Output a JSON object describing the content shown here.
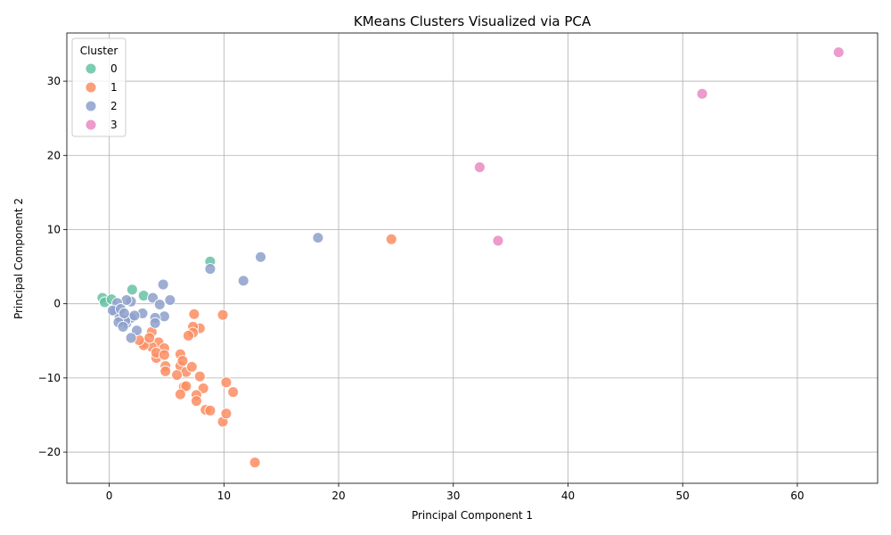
{
  "chart_data": {
    "type": "scatter",
    "title": "KMeans Clusters Visualized via PCA",
    "xlabel": "Principal Component 1",
    "ylabel": "Principal Component 2",
    "xlim": [
      -3.7,
      67
    ],
    "ylim": [
      -24.2,
      36.5
    ],
    "xticks": [
      0,
      10,
      20,
      30,
      40,
      50,
      60
    ],
    "yticks": [
      -20,
      -10,
      0,
      10,
      20,
      30
    ],
    "grid": true,
    "legend": {
      "title": "Cluster",
      "placement": "top-left"
    },
    "series": [
      {
        "name": "0",
        "color": "#66c2a5",
        "points": [
          [
            -0.6,
            0.8
          ],
          [
            -0.4,
            0.2
          ],
          [
            2.0,
            1.9
          ],
          [
            3.0,
            1.1
          ],
          [
            8.8,
            5.7
          ],
          [
            0.2,
            0.6
          ]
        ]
      },
      {
        "name": "1",
        "color": "#fc8d62",
        "points": [
          [
            24.6,
            8.7
          ],
          [
            9.9,
            -1.5
          ],
          [
            7.4,
            -1.4
          ],
          [
            7.9,
            -3.3
          ],
          [
            7.3,
            -3.1
          ],
          [
            7.3,
            -3.9
          ],
          [
            6.9,
            -4.3
          ],
          [
            4.3,
            -5.2
          ],
          [
            4.8,
            -6.0
          ],
          [
            3.1,
            -5.3
          ],
          [
            3.7,
            -5.8
          ],
          [
            3.0,
            -5.6
          ],
          [
            3.7,
            -3.8
          ],
          [
            3.5,
            -4.6
          ],
          [
            2.6,
            -4.9
          ],
          [
            4.1,
            -7.3
          ],
          [
            4.1,
            -6.6
          ],
          [
            4.8,
            -6.9
          ],
          [
            4.9,
            -8.4
          ],
          [
            4.9,
            -9.1
          ],
          [
            6.2,
            -6.8
          ],
          [
            6.2,
            -8.4
          ],
          [
            6.4,
            -7.7
          ],
          [
            6.7,
            -9.2
          ],
          [
            7.2,
            -8.5
          ],
          [
            5.9,
            -9.6
          ],
          [
            7.9,
            -9.8
          ],
          [
            6.5,
            -11.2
          ],
          [
            6.7,
            -11.1
          ],
          [
            8.2,
            -11.4
          ],
          [
            6.2,
            -12.2
          ],
          [
            7.6,
            -12.3
          ],
          [
            7.6,
            -13.1
          ],
          [
            8.4,
            -14.3
          ],
          [
            8.8,
            -14.4
          ],
          [
            9.9,
            -15.9
          ],
          [
            10.2,
            -14.8
          ],
          [
            10.2,
            -10.6
          ],
          [
            10.8,
            -11.9
          ],
          [
            12.7,
            -21.4
          ]
        ]
      },
      {
        "name": "2",
        "color": "#8da0cb",
        "points": [
          [
            18.2,
            8.9
          ],
          [
            13.2,
            6.3
          ],
          [
            11.7,
            3.1
          ],
          [
            8.8,
            4.7
          ],
          [
            4.7,
            2.6
          ],
          [
            5.3,
            0.5
          ],
          [
            3.8,
            0.8
          ],
          [
            4.4,
            -0.1
          ],
          [
            4.8,
            -1.7
          ],
          [
            4.0,
            -1.9
          ],
          [
            4.0,
            -2.6
          ],
          [
            2.9,
            -1.3
          ],
          [
            1.9,
            0.3
          ],
          [
            1.5,
            0.5
          ],
          [
            0.7,
            0.1
          ],
          [
            0.5,
            -1.0
          ],
          [
            0.9,
            -1.8
          ],
          [
            1.5,
            -2.6
          ],
          [
            1.9,
            -1.9
          ],
          [
            2.4,
            -3.6
          ],
          [
            1.9,
            -4.6
          ],
          [
            1.4,
            -2.3
          ],
          [
            0.3,
            -0.9
          ],
          [
            1.0,
            -0.7
          ],
          [
            0.8,
            -2.5
          ],
          [
            1.3,
            -1.3
          ],
          [
            2.2,
            -1.6
          ],
          [
            1.2,
            -3.1
          ]
        ]
      },
      {
        "name": "3",
        "color": "#e78ac3",
        "points": [
          [
            63.6,
            33.9
          ],
          [
            51.7,
            28.3
          ],
          [
            32.3,
            18.4
          ],
          [
            33.9,
            8.5
          ]
        ]
      }
    ]
  }
}
